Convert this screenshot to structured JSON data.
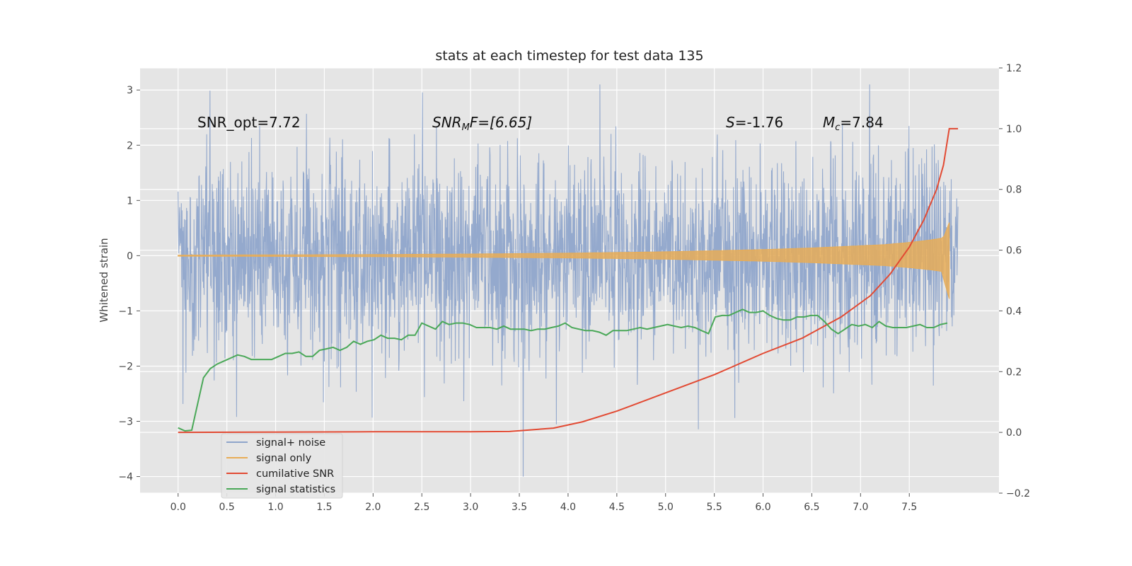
{
  "chart_data": {
    "type": "line",
    "title": "stats at each timestep for test data 135",
    "ylabel": "Whitened strain",
    "xlim": [
      -0.39,
      8.42
    ],
    "ylim": [
      -4.3,
      3.4
    ],
    "ylim_right": [
      -0.2,
      1.2
    ],
    "x_ticks": [
      "0.0",
      "0.5",
      "1.0",
      "1.5",
      "2.0",
      "2.5",
      "3.0",
      "3.5",
      "4.0",
      "4.5",
      "5.0",
      "5.5",
      "6.0",
      "6.5",
      "7.0",
      "7.5"
    ],
    "y_ticks": [
      "3",
      "2",
      "1",
      "0",
      "−1",
      "−2",
      "−3",
      "−4"
    ],
    "y_ticks_right": [
      "1.2",
      "1.0",
      "0.8",
      "0.6",
      "0.4",
      "0.2",
      "0.0",
      "−0.2"
    ],
    "grid": true,
    "legend_position": "lower-left",
    "annotations": {
      "snr_opt": "SNR_opt=7.72",
      "snr_mf_base": "SNR",
      "snr_mf_sub": "M",
      "snr_mf_rest": "F=[6.65]",
      "s_sym": "S",
      "s_val": "=-1.76",
      "mc_base": "M",
      "mc_sub": "c",
      "mc_val": "=7.84"
    },
    "series": [
      {
        "name": "signal+ noise",
        "color": "#8fa5cb",
        "axis": "left",
        "note_range": [
          -4.0,
          3.1
        ]
      },
      {
        "name": "signal only",
        "color": "#e8ad57",
        "axis": "left",
        "envelope_x": [
          0.0,
          1.0,
          2.0,
          3.0,
          4.0,
          5.0,
          6.0,
          6.5,
          7.0,
          7.25,
          7.5,
          7.7,
          7.85,
          7.91
        ],
        "envelope_amp": [
          0.01,
          0.015,
          0.02,
          0.03,
          0.045,
          0.07,
          0.11,
          0.14,
          0.18,
          0.2,
          0.24,
          0.28,
          0.32,
          0.6
        ]
      },
      {
        "name": "cumilative SNR",
        "color": "#e24a33",
        "axis": "right",
        "x": [
          0.0,
          1.0,
          2.0,
          3.0,
          3.4,
          3.85,
          4.15,
          4.5,
          5.0,
          5.5,
          6.0,
          6.4,
          6.8,
          7.1,
          7.3,
          7.5,
          7.65,
          7.78,
          7.85,
          7.88,
          7.91,
          8.0
        ],
        "y": [
          0.0,
          0.001,
          0.002,
          0.002,
          0.003,
          0.014,
          0.035,
          0.07,
          0.13,
          0.19,
          0.26,
          0.31,
          0.38,
          0.45,
          0.52,
          0.61,
          0.7,
          0.8,
          0.88,
          0.94,
          1.0,
          1.0
        ]
      },
      {
        "name": "signal statistics",
        "color": "#4aa858",
        "axis": "right",
        "x": [
          0.0,
          0.07,
          0.14,
          0.26,
          0.33,
          0.4,
          0.47,
          0.54,
          0.61,
          0.68,
          0.75,
          0.82,
          0.89,
          0.96,
          1.03,
          1.1,
          1.17,
          1.24,
          1.31,
          1.38,
          1.45,
          1.52,
          1.59,
          1.66,
          1.73,
          1.8,
          1.87,
          1.94,
          2.01,
          2.08,
          2.15,
          2.22,
          2.29,
          2.36,
          2.43,
          2.5,
          2.57,
          2.64,
          2.71,
          2.78,
          2.85,
          2.92,
          2.99,
          3.06,
          3.13,
          3.2,
          3.27,
          3.34,
          3.41,
          3.48,
          3.55,
          3.62,
          3.69,
          3.76,
          3.83,
          3.9,
          3.97,
          4.04,
          4.11,
          4.18,
          4.25,
          4.32,
          4.39,
          4.46,
          4.53,
          4.6,
          4.67,
          4.74,
          4.81,
          4.88,
          4.95,
          5.02,
          5.09,
          5.16,
          5.23,
          5.3,
          5.37,
          5.44,
          5.51,
          5.58,
          5.65,
          5.72,
          5.79,
          5.86,
          5.93,
          6.0,
          6.07,
          6.14,
          6.21,
          6.28,
          6.35,
          6.42,
          6.49,
          6.56,
          6.63,
          6.7,
          6.77,
          6.84,
          6.91,
          6.98,
          7.05,
          7.12,
          7.19,
          7.26,
          7.33,
          7.4,
          7.47,
          7.54,
          7.61,
          7.68,
          7.75,
          7.82,
          7.89
        ],
        "y": [
          0.015,
          0.005,
          0.007,
          0.18,
          0.21,
          0.225,
          0.235,
          0.245,
          0.255,
          0.25,
          0.24,
          0.24,
          0.24,
          0.24,
          0.25,
          0.26,
          0.26,
          0.265,
          0.25,
          0.25,
          0.27,
          0.275,
          0.28,
          0.27,
          0.28,
          0.3,
          0.29,
          0.3,
          0.305,
          0.32,
          0.31,
          0.31,
          0.305,
          0.32,
          0.32,
          0.36,
          0.35,
          0.34,
          0.365,
          0.355,
          0.36,
          0.36,
          0.355,
          0.345,
          0.345,
          0.345,
          0.34,
          0.35,
          0.34,
          0.34,
          0.34,
          0.335,
          0.34,
          0.34,
          0.345,
          0.35,
          0.36,
          0.345,
          0.34,
          0.335,
          0.335,
          0.33,
          0.32,
          0.335,
          0.335,
          0.335,
          0.34,
          0.345,
          0.34,
          0.345,
          0.35,
          0.355,
          0.35,
          0.345,
          0.35,
          0.345,
          0.335,
          0.325,
          0.38,
          0.385,
          0.385,
          0.395,
          0.405,
          0.395,
          0.395,
          0.4,
          0.385,
          0.375,
          0.37,
          0.37,
          0.38,
          0.38,
          0.385,
          0.385,
          0.365,
          0.34,
          0.325,
          0.34,
          0.355,
          0.35,
          0.355,
          0.345,
          0.365,
          0.35,
          0.345,
          0.345,
          0.345,
          0.35,
          0.355,
          0.345,
          0.345,
          0.355,
          0.36
        ]
      }
    ]
  }
}
